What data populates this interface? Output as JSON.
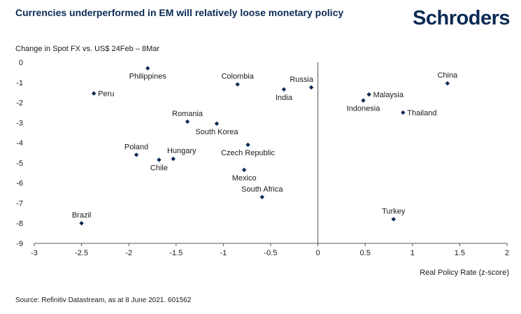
{
  "header": {
    "title": "Currencies underperformed in EM will relatively loose monetary policy",
    "logo_text": "Schroders"
  },
  "footer": {
    "source": "Source: Refinitiv Datastream, as at 8 June 2021. 601562"
  },
  "colors": {
    "title": "#0b2a53",
    "marker": "#0b2a53",
    "axis": "#555555"
  },
  "chart_data": {
    "type": "scatter",
    "ylabel": "Change in Spot FX vs. US$ 24Feb – 8Mar",
    "xlabel": "Real Policy Rate (z-score)",
    "xlim": [
      -3,
      2
    ],
    "ylim": [
      -9,
      0
    ],
    "x_ticks": [
      -3,
      -2.5,
      -2,
      -1.5,
      -1,
      -0.5,
      0,
      0.5,
      1,
      1.5,
      2
    ],
    "x_tick_labels": [
      "-3",
      "-2.5",
      "-2",
      "-1.5",
      "-1",
      "-0.5",
      "0",
      "0.5",
      "1",
      "1.5",
      "2"
    ],
    "y_ticks": [
      0,
      -1,
      -2,
      -3,
      -4,
      -5,
      -6,
      -7,
      -8,
      -9
    ],
    "y_tick_labels": [
      "0",
      "-1",
      "-2",
      "-3",
      "-4",
      "-5",
      "-6",
      "-7",
      "-8",
      "-9"
    ],
    "grid": false,
    "points": [
      {
        "label": "Philippines",
        "x": -1.8,
        "y": -0.3,
        "pos": "below"
      },
      {
        "label": "Peru",
        "x": -2.37,
        "y": -1.55,
        "pos": "right"
      },
      {
        "label": "Colombia",
        "x": -0.85,
        "y": -1.1,
        "pos": "above"
      },
      {
        "label": "Russia",
        "x": -0.07,
        "y": -1.25,
        "pos": "above-left"
      },
      {
        "label": "India",
        "x": -0.36,
        "y": -1.35,
        "pos": "below"
      },
      {
        "label": "China",
        "x": 1.37,
        "y": -1.05,
        "pos": "above"
      },
      {
        "label": "Malaysia",
        "x": 0.54,
        "y": -1.6,
        "pos": "right"
      },
      {
        "label": "Indonesia",
        "x": 0.48,
        "y": -1.9,
        "pos": "below"
      },
      {
        "label": "Thailand",
        "x": 0.9,
        "y": -2.5,
        "pos": "right"
      },
      {
        "label": "Romania",
        "x": -1.38,
        "y": -2.95,
        "pos": "above"
      },
      {
        "label": "South Korea",
        "x": -1.07,
        "y": -3.05,
        "pos": "below"
      },
      {
        "label": "Czech Republic",
        "x": -0.74,
        "y": -4.1,
        "pos": "below"
      },
      {
        "label": "Poland",
        "x": -1.92,
        "y": -4.6,
        "pos": "above"
      },
      {
        "label": "Hungary",
        "x": -1.53,
        "y": -4.8,
        "pos": "above-right"
      },
      {
        "label": "Chile",
        "x": -1.68,
        "y": -4.85,
        "pos": "below"
      },
      {
        "label": "Mexico",
        "x": -0.78,
        "y": -5.35,
        "pos": "below"
      },
      {
        "label": "South Africa",
        "x": -0.59,
        "y": -6.7,
        "pos": "above"
      },
      {
        "label": "Brazil",
        "x": -2.5,
        "y": -8.0,
        "pos": "above"
      },
      {
        "label": "Turkey",
        "x": 0.8,
        "y": -7.8,
        "pos": "above"
      }
    ]
  }
}
